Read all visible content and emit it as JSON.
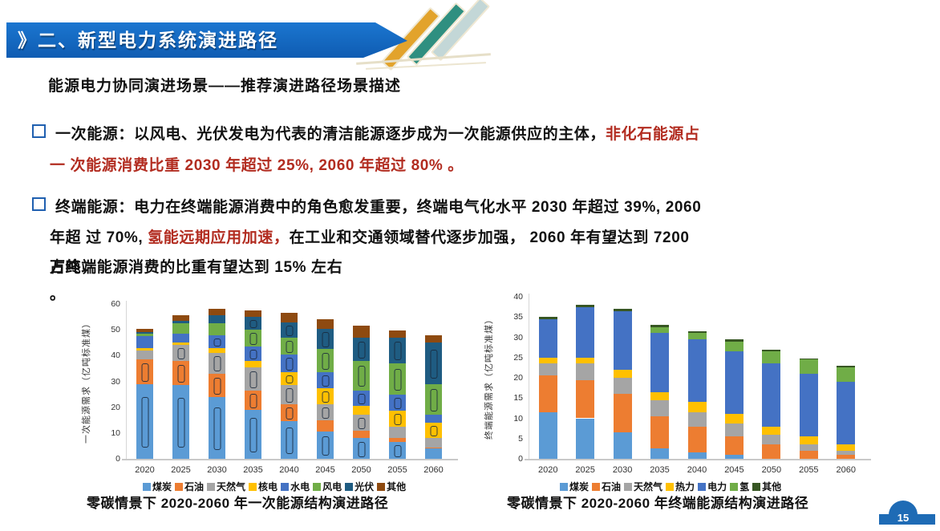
{
  "page": {
    "number": "15"
  },
  "colors": {
    "banner_blue": "#1168c4",
    "badge_blue": "#1e6bb5",
    "highlight_red": "#b22c20",
    "bullet_square_blue": "#2060b0"
  },
  "header": {
    "prefix": "》",
    "title": "二、新型电力系统演进路径"
  },
  "subtitle": "能源电力协同演进场景——推荐演进路径场景描述",
  "bullets": {
    "marker": "□",
    "b1_line1_black": "一次能源：以风电、光伏发电为代表的清洁能源逐步成为一次能源供应的主体，",
    "b1_line1_red": "非化石能源占",
    "b1_line2_red": "一 次能源消费比重 2030 年超过 25%, 2060 年超过 80% 。",
    "b2_line1": "终端能源：电力在终端能源消费中的角色愈发重要，终端电气化水平 2030 年超过 39%, 2060",
    "b2_line2_pre": "年超 过 70%, ",
    "b2_line2_red": "氢能远期应用加速，",
    "b2_line2_post": "在工业和交通领域替代逐步加强， 2060 年有望达到 7200",
    "b2_line3_overlay": "万吨，",
    "b2_line3_main": "占终端能源消费的比重有望达到 15% 左右",
    "b2_line4": "。"
  },
  "chart_data": [
    {
      "type": "bar",
      "stacked": true,
      "title": "零碳情景下 2020-2060 年一次能源结构演进路径",
      "xlabel": "",
      "ylabel": "一次能源需求（亿吨标准煤）",
      "ylim": [
        0,
        60
      ],
      "yticks": [
        0,
        10,
        20,
        30,
        40,
        50,
        60
      ],
      "grid": false,
      "legend_position": "bottom",
      "categories": [
        "2020",
        "2025",
        "2030",
        "2035",
        "2040",
        "2045",
        "2050",
        "2055",
        "2060"
      ],
      "series": [
        {
          "name": "煤炭",
          "color": "#5B9BD5",
          "values": [
            29,
            28.5,
            24,
            19,
            14.5,
            10.5,
            8,
            6.5,
            4
          ]
        },
        {
          "name": "石油",
          "color": "#ED7D31",
          "values": [
            9.5,
            9.5,
            9,
            7.5,
            6.5,
            4.5,
            3,
            1.5,
            0.5
          ]
        },
        {
          "name": "天然气",
          "color": "#A5A5A5",
          "values": [
            3.5,
            6,
            8,
            9,
            7.5,
            6,
            6,
            4.5,
            3.5
          ]
        },
        {
          "name": "核电",
          "color": "#FFC000",
          "values": [
            1,
            1,
            2,
            2.5,
            5,
            6.5,
            3.5,
            6.3,
            6
          ]
        },
        {
          "name": "水电",
          "color": "#4472C4",
          "values": [
            4.5,
            3.5,
            5,
            5.5,
            7,
            6,
            6,
            6.2,
            3
          ]
        },
        {
          "name": "风电",
          "color": "#70AD47",
          "values": [
            1,
            4,
            4.5,
            6.5,
            6.5,
            9,
            11.5,
            12,
            12
          ]
        },
        {
          "name": "光伏",
          "color": "#1F5C82",
          "values": [
            0.5,
            1,
            3,
            5,
            6,
            8,
            9,
            10,
            16
          ]
        },
        {
          "name": "其他",
          "color": "#8E4A10",
          "values": [
            1.5,
            2,
            2.5,
            2.5,
            3.5,
            3.5,
            4.5,
            2.8,
            3
          ]
        }
      ]
    },
    {
      "type": "bar",
      "stacked": true,
      "title": "零碳情景下 2020-2060 年终端能源结构演进路径",
      "xlabel": "",
      "ylabel": "终端能源需求（亿吨标准煤）",
      "ylim": [
        0,
        40
      ],
      "yticks": [
        0,
        5,
        10,
        15,
        20,
        25,
        30,
        35,
        40
      ],
      "grid": false,
      "legend_position": "bottom",
      "categories": [
        "2020",
        "2025",
        "2030",
        "2035",
        "2040",
        "2045",
        "2050",
        "2055",
        "2060"
      ],
      "series": [
        {
          "name": "煤炭",
          "color": "#5B9BD5",
          "values": [
            11.5,
            10,
            6.5,
            2.5,
            1.5,
            1,
            0,
            0,
            0
          ]
        },
        {
          "name": "石油",
          "color": "#ED7D31",
          "values": [
            9,
            9.5,
            9.5,
            8,
            6.5,
            4.5,
            3.5,
            2,
            1
          ]
        },
        {
          "name": "天然气",
          "color": "#A5A5A5",
          "values": [
            3,
            4,
            4,
            4,
            3.5,
            3.2,
            2.5,
            1.5,
            1
          ]
        },
        {
          "name": "热力",
          "color": "#FFC000",
          "values": [
            1.5,
            1.5,
            2,
            2,
            2.5,
            2.3,
            2,
            2,
            1.5
          ]
        },
        {
          "name": "电力",
          "color": "#4472C4",
          "values": [
            9.5,
            12.5,
            14.5,
            14.5,
            15.5,
            15.5,
            15.5,
            15.5,
            15.5
          ]
        },
        {
          "name": "氢",
          "color": "#70AD47",
          "values": [
            0,
            0,
            0,
            1.5,
            1.5,
            2.5,
            3,
            3.5,
            3.5
          ]
        },
        {
          "name": "其他",
          "color": "#375623",
          "values": [
            0.5,
            0.5,
            0.5,
            0.5,
            0.5,
            0.5,
            0.5,
            0.3,
            0.5
          ]
        }
      ]
    }
  ],
  "captions": {
    "left": "零碳情景下 2020-2060 年一次能源结构演进路径",
    "right": "零碳情景下 2020-2060 年终端能源结构演进路径"
  }
}
